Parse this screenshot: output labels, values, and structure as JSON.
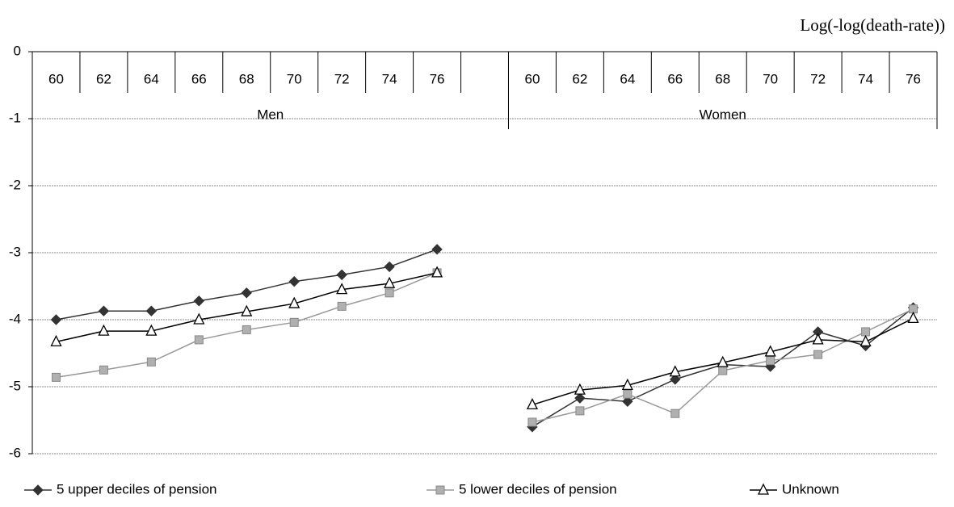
{
  "chart_data": {
    "type": "line",
    "title": "Log(-log(death-rate))",
    "categories": [
      "60",
      "62",
      "64",
      "66",
      "68",
      "70",
      "72",
      "74",
      "76",
      null,
      "60",
      "62",
      "64",
      "66",
      "68",
      "70",
      "72",
      "74",
      "76"
    ],
    "group_labels": [
      "Men",
      "Women"
    ],
    "series": [
      {
        "name": "5 upper deciles of pension",
        "color": "#333333",
        "marker": "diamond",
        "values": [
          -4.0,
          -3.87,
          -3.87,
          -3.72,
          -3.6,
          -3.43,
          -3.33,
          -3.21,
          -2.95,
          null,
          -5.6,
          -5.17,
          -5.22,
          -4.89,
          -4.67,
          -4.7,
          -4.18,
          -4.39,
          -3.82
        ]
      },
      {
        "name": "5 lower deciles of pension",
        "color": "#999999",
        "marker": "square",
        "values": [
          -4.86,
          -4.75,
          -4.63,
          -4.3,
          -4.15,
          -4.04,
          -3.8,
          -3.6,
          -3.3,
          null,
          -5.53,
          -5.36,
          -5.11,
          -5.4,
          -4.76,
          -4.61,
          -4.52,
          -4.18,
          -3.84
        ]
      },
      {
        "name": "Unknown",
        "color": "#000000",
        "marker": "triangle",
        "values": [
          -4.33,
          -4.17,
          -4.17,
          -4.0,
          -3.88,
          -3.76,
          -3.55,
          -3.46,
          -3.3,
          null,
          -5.27,
          -5.05,
          -4.98,
          -4.78,
          -4.64,
          -4.48,
          -4.3,
          -4.33,
          -3.98
        ]
      }
    ],
    "ylim": [
      -6,
      0
    ],
    "yticks": [
      0,
      -1,
      -2,
      -3,
      -4,
      -5,
      -6
    ],
    "grid": true
  }
}
